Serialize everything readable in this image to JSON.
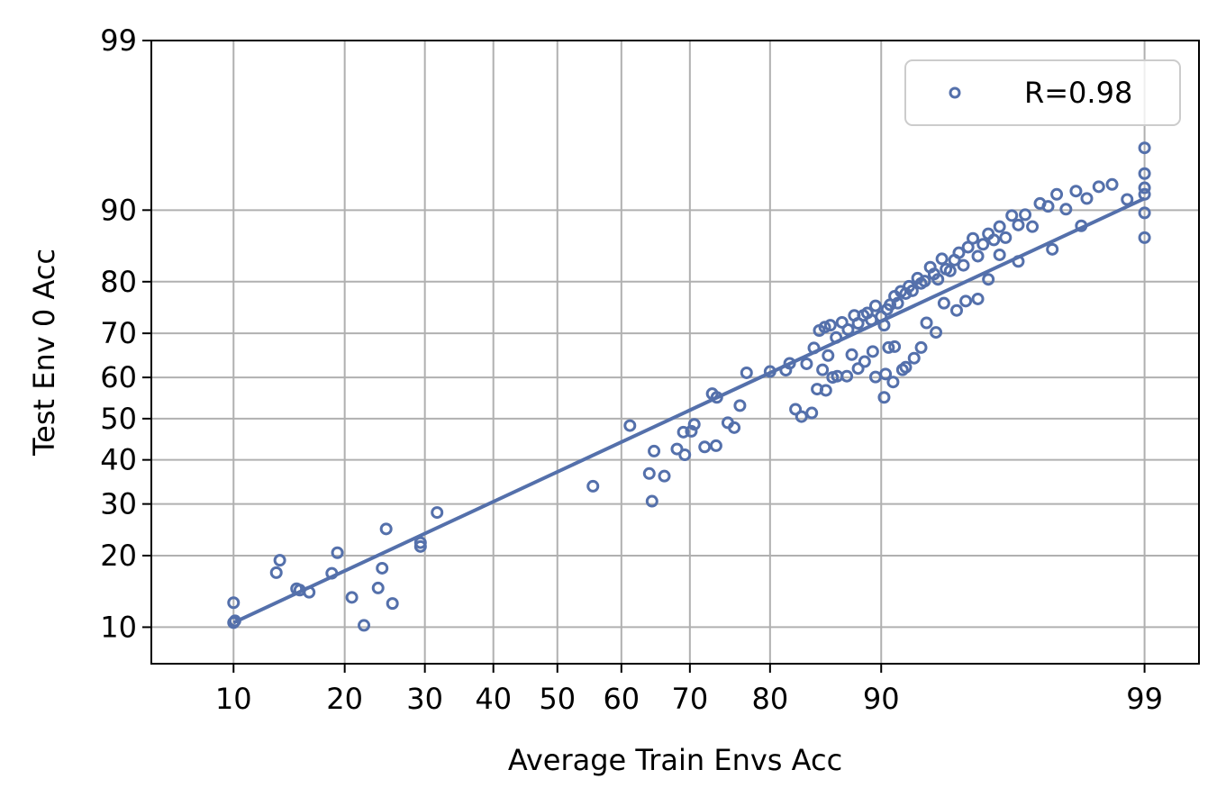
{
  "chart_data": {
    "type": "scatter",
    "xlabel": "Average Train Envs Acc",
    "ylabel": "Test Env 0 Acc",
    "x_ticks": [
      10,
      20,
      30,
      40,
      50,
      60,
      70,
      80,
      90,
      99
    ],
    "y_ticks": [
      10,
      20,
      30,
      40,
      50,
      60,
      70,
      80,
      90,
      99
    ],
    "scale": "probit",
    "xlim": [
      5.4,
      99.45
    ],
    "ylim": [
      6.6,
      99
    ],
    "grid": true,
    "legend": {
      "placement": "top-right",
      "label": "R=0.98"
    },
    "marker_color": "#5470ab",
    "fit_line": {
      "x": [
        10,
        99
      ],
      "y": [
        10.5,
        91.2
      ]
    },
    "series": [
      {
        "name": "R=0.98",
        "points": [
          [
            10,
            10.5
          ],
          [
            10,
            12.9
          ],
          [
            10.1,
            10.7
          ],
          [
            13.3,
            17.2
          ],
          [
            13.6,
            19.2
          ],
          [
            15.1,
            14.8
          ],
          [
            15.4,
            14.6
          ],
          [
            16.3,
            14.3
          ],
          [
            18.6,
            17.1
          ],
          [
            19.2,
            20.5
          ],
          [
            20.8,
            13.6
          ],
          [
            22.2,
            10.2
          ],
          [
            23.9,
            14.9
          ],
          [
            24.4,
            17.9
          ],
          [
            24.9,
            24.9
          ],
          [
            25.7,
            12.8
          ],
          [
            29.4,
            21.6
          ],
          [
            29.4,
            22.3
          ],
          [
            31.7,
            28.2
          ],
          [
            55.6,
            33.9
          ],
          [
            61.3,
            48.3
          ],
          [
            64.2,
            36.8
          ],
          [
            64.6,
            30.6
          ],
          [
            64.9,
            42.1
          ],
          [
            66.4,
            36.2
          ],
          [
            68.2,
            42.6
          ],
          [
            69.1,
            46.7
          ],
          [
            69.3,
            41.2
          ],
          [
            70.2,
            46.9
          ],
          [
            70.6,
            48.6
          ],
          [
            72,
            43.1
          ],
          [
            73,
            56.1
          ],
          [
            73.5,
            43.4
          ],
          [
            73.6,
            55.2
          ],
          [
            75,
            49
          ],
          [
            75.8,
            47.8
          ],
          [
            76.5,
            53.2
          ],
          [
            77.3,
            61.1
          ],
          [
            80,
            61.4
          ],
          [
            81.7,
            61.7
          ],
          [
            82.1,
            63.3
          ],
          [
            82.7,
            52.3
          ],
          [
            83.3,
            50.5
          ],
          [
            83.8,
            63.2
          ],
          [
            84.3,
            51.4
          ],
          [
            84.8,
            57.2
          ],
          [
            85.3,
            61.8
          ],
          [
            85.6,
            56.9
          ],
          [
            85.8,
            65.1
          ],
          [
            86.2,
            60
          ],
          [
            86.6,
            60.3
          ],
          [
            87.4,
            60.3
          ],
          [
            87.8,
            65.3
          ],
          [
            88.3,
            62.1
          ],
          [
            88.8,
            63.7
          ],
          [
            89.4,
            66
          ],
          [
            89.6,
            60.1
          ],
          [
            90.2,
            55.2
          ],
          [
            90.3,
            60.8
          ],
          [
            90.5,
            66.9
          ],
          [
            90.8,
            58.9
          ],
          [
            90.9,
            67.1
          ],
          [
            91.4,
            61.8
          ],
          [
            91.6,
            62.4
          ],
          [
            92.1,
            64.5
          ],
          [
            92.5,
            66.9
          ],
          [
            92.8,
            72.2
          ],
          [
            93.3,
            70.2
          ],
          [
            93.7,
            76.1
          ],
          [
            94.3,
            74.7
          ],
          [
            94.7,
            76.5
          ],
          [
            95.2,
            76.9
          ],
          [
            95.6,
            80.4
          ],
          [
            96,
            84.3
          ],
          [
            96.6,
            83.3
          ],
          [
            97.5,
            85.1
          ],
          [
            98.1,
            88.2
          ],
          [
            99,
            86.7
          ],
          [
            99,
            89.7
          ],
          [
            99,
            95.2
          ],
          [
            84.5,
            66.8
          ],
          [
            85,
            70.6
          ],
          [
            85.5,
            71.3
          ],
          [
            86,
            71.7
          ],
          [
            86.5,
            69.1
          ],
          [
            87,
            72.3
          ],
          [
            87.5,
            70.8
          ],
          [
            88,
            73.7
          ],
          [
            88.3,
            72.1
          ],
          [
            88.7,
            73.7
          ],
          [
            89,
            74.2
          ],
          [
            89.3,
            72.8
          ],
          [
            89.6,
            75.6
          ],
          [
            90,
            73.5
          ],
          [
            90.2,
            71.7
          ],
          [
            90.4,
            74.9
          ],
          [
            90.6,
            75.8
          ],
          [
            90.9,
            77.4
          ],
          [
            91.1,
            76.1
          ],
          [
            91.3,
            78.3
          ],
          [
            91.6,
            77.9
          ],
          [
            91.8,
            79.2
          ],
          [
            92,
            78.4
          ],
          [
            92.3,
            80.6
          ],
          [
            92.5,
            79.7
          ],
          [
            92.7,
            80.1
          ],
          [
            93,
            82.4
          ],
          [
            93.2,
            81.3
          ],
          [
            93.4,
            80.4
          ],
          [
            93.6,
            83.7
          ],
          [
            93.8,
            82.1
          ],
          [
            94,
            81.8
          ],
          [
            94.2,
            83.5
          ],
          [
            94.4,
            84.6
          ],
          [
            94.6,
            82.7
          ],
          [
            94.8,
            85.4
          ],
          [
            95,
            86.6
          ],
          [
            95.2,
            84.1
          ],
          [
            95.4,
            85.8
          ],
          [
            95.6,
            87.2
          ],
          [
            95.8,
            86.4
          ],
          [
            96,
            88.1
          ],
          [
            96.2,
            86.7
          ],
          [
            96.4,
            89.4
          ],
          [
            96.6,
            88.3
          ],
          [
            96.8,
            89.5
          ],
          [
            97,
            88.1
          ],
          [
            97.2,
            90.7
          ],
          [
            97.4,
            90.4
          ],
          [
            97.6,
            91.6
          ],
          [
            97.8,
            90.1
          ],
          [
            98,
            91.9
          ],
          [
            98.2,
            91.2
          ],
          [
            98.4,
            92.3
          ],
          [
            98.6,
            92.5
          ],
          [
            98.8,
            91.1
          ],
          [
            99,
            92.2
          ],
          [
            99,
            91.6
          ],
          [
            99,
            93.4
          ]
        ]
      }
    ]
  }
}
